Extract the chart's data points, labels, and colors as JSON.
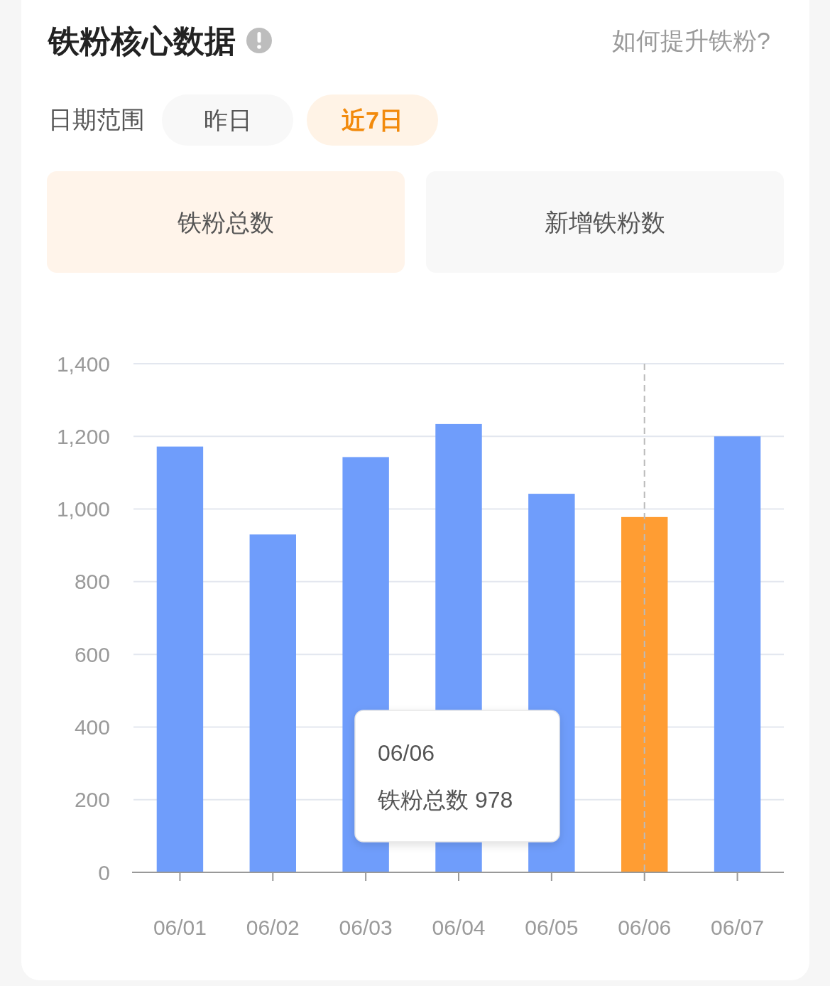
{
  "chart_data": {
    "type": "bar",
    "title": "铁粉核心数据",
    "categories": [
      "06/01",
      "06/02",
      "06/03",
      "06/04",
      "06/05",
      "06/06",
      "06/07"
    ],
    "values": [
      1172,
      930,
      1143,
      1234,
      1042,
      978,
      1200
    ],
    "colors": [
      "#6f9dfb",
      "#6f9dfb",
      "#6f9dfb",
      "#6f9dfb",
      "#6f9dfb",
      "#ff9d33",
      "#6f9dfb"
    ],
    "ylim": [
      0,
      1400
    ],
    "yticks": [
      0,
      200,
      400,
      600,
      800,
      {
        "value": 1000,
        "label": "1,000"
      },
      {
        "value": 1200,
        "label": "1,200"
      },
      {
        "value": 1400,
        "label": "1,400"
      }
    ],
    "grid": "y",
    "ref_lines": [
      {
        "axis": "x",
        "value": "06/06",
        "color": "#bbbbbb",
        "line_style": "dashed"
      }
    ],
    "annotations": [
      "如何提升铁粉?",
      "日期范围",
      "昨日",
      "近7日",
      "铁粉总数",
      "新增铁粉数",
      "06/06",
      "铁粉总数 978"
    ]
  }
}
